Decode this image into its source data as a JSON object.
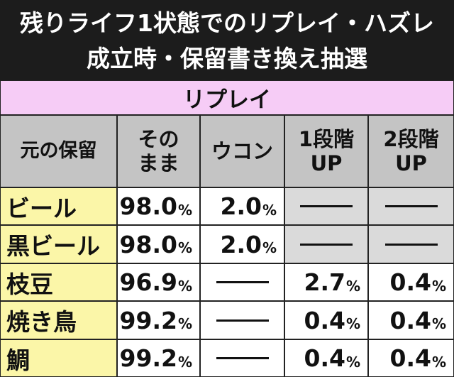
{
  "title": {
    "line1": "残りライフ1状態でのリプレイ・ハズレ",
    "line2": "成立時・保留書き換え抽選"
  },
  "section_label": "リプレイ",
  "headers": {
    "original": "元の保留",
    "keep_line1": "その",
    "keep_line2": "まま",
    "ukon": "ウコン",
    "up1_line1": "1段階",
    "up1_line2": "UP",
    "up2_line1": "2段階",
    "up2_line2": "UP"
  },
  "unit": "%",
  "dash_text": "—",
  "rows": [
    {
      "label": "ビール",
      "keep": "98.0",
      "ukon": "2.0",
      "up1": "—",
      "up2": "—"
    },
    {
      "label": "黒ビール",
      "keep": "98.0",
      "ukon": "2.0",
      "up1": "—",
      "up2": "—"
    },
    {
      "label": "枝豆",
      "keep": "96.9",
      "ukon": "—",
      "up1": "2.7",
      "up2": "0.4"
    },
    {
      "label": "焼き鳥",
      "keep": "99.2",
      "ukon": "—",
      "up1": "0.4",
      "up2": "0.4"
    },
    {
      "label": "鯛",
      "keep": "99.2",
      "ukon": "—",
      "up1": "0.4",
      "up2": "0.4"
    }
  ],
  "colors": {
    "title_bg": "#1c1c1c",
    "section_bg": "#f6ccf6",
    "header_bg": "#c4c4c4",
    "label_bg": "#fbf6a8",
    "na_bg": "#dadada"
  }
}
